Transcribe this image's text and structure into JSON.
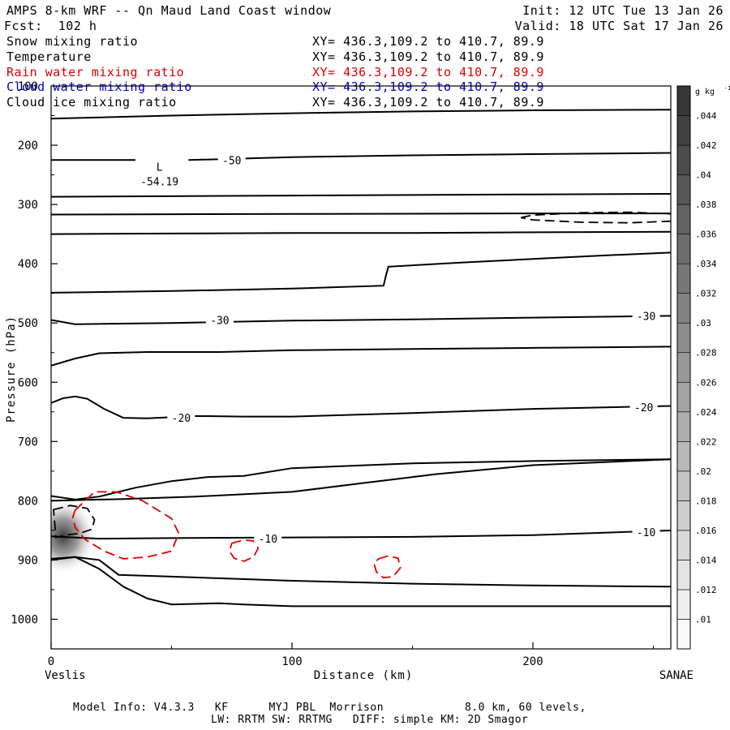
{
  "header": {
    "title": "AMPS 8-km WRF -- Qn Maud Land Coast window",
    "forecast": "Fcst:  102 h",
    "init": "Init: 12 UTC Tue 13 Jan 26",
    "valid": "Valid: 18 UTC Sat 17 Jan 26"
  },
  "fields": [
    {
      "name": "Snow mixing ratio",
      "xy": "XY= 436.3,109.2 to 410.7, 89.9",
      "color": "#000000"
    },
    {
      "name": "Temperature",
      "xy": "XY= 436.3,109.2 to 410.7, 89.9",
      "color": "#000000"
    },
    {
      "name": "Rain water mixing ratio",
      "xy": "XY= 436.3,109.2 to 410.7, 89.9",
      "color": "#dd0000"
    },
    {
      "name": "Cloud water mixing ratio",
      "xy": "XY= 436.3,109.2 to 410.7, 89.9",
      "color": "#0000cc"
    },
    {
      "name": "Cloud ice mixing ratio",
      "xy": "XY= 436.3,109.2 to 410.7, 89.9",
      "color": "#000000"
    }
  ],
  "footer": {
    "line1": "Model Info: V4.3.3   KF      MYJ PBL  Morrison            8.0 km, 60 levels,",
    "line2": "LW: RRTM SW: RRTMG   DIFF: simple KM: 2D Smagor"
  },
  "chart_data": {
    "type": "vertical cross-section (contour)",
    "xlabel": "Distance (km)",
    "ylabel": "Pressure (hPa)",
    "xlim": [
      0,
      258
    ],
    "ylim": [
      100,
      1050
    ],
    "x_ticks": [
      0,
      100,
      200
    ],
    "y_ticks": [
      100,
      200,
      300,
      400,
      500,
      600,
      700,
      800,
      900,
      1000
    ],
    "x_endpoint_labels": {
      "left": "Veslis",
      "right": "SANAE"
    },
    "colorbar": {
      "unit_label": "g kg",
      "unit_exponent": "-1",
      "levels": [
        ".01",
        ".012",
        ".014",
        ".016",
        ".018",
        ".02",
        ".022",
        ".024",
        ".026",
        ".028",
        ".03",
        ".032",
        ".034",
        ".036",
        ".038",
        ".04",
        ".042",
        ".044"
      ]
    },
    "minimum_marker": {
      "label": "L",
      "value": "-54.19",
      "x": 45,
      "p": 225
    },
    "temperature_labels": [
      {
        "text": "-50",
        "x": 75,
        "p": 225
      },
      {
        "text": "-30",
        "x": 70,
        "p": 495
      },
      {
        "text": "-30",
        "x": 247,
        "p": 488
      },
      {
        "text": "-20",
        "x": 54,
        "p": 660
      },
      {
        "text": "-20",
        "x": 246,
        "p": 642
      },
      {
        "text": "-10",
        "x": 90,
        "p": 864
      },
      {
        "text": "-10",
        "x": 247,
        "p": 853
      }
    ],
    "temperature_contours": [
      {
        "x": [
          0,
          50,
          100,
          150,
          200,
          258
        ],
        "p": [
          155,
          150,
          146,
          143,
          141,
          140
        ]
      },
      {
        "x": [
          0,
          35
        ],
        "p": [
          225,
          225
        ],
        "gap_after": true
      },
      {
        "x": [
          57,
          100,
          150,
          200,
          258
        ],
        "p": [
          225,
          220,
          217,
          215,
          213
        ]
      },
      {
        "x": [
          0,
          50,
          100,
          150,
          200,
          258
        ],
        "p": [
          287,
          286,
          285,
          284,
          283,
          282
        ]
      },
      {
        "x": [
          0,
          100,
          200,
          258
        ],
        "p": [
          317,
          316,
          315,
          315
        ]
      },
      {
        "x": [
          0,
          50,
          100,
          150,
          200,
          258
        ],
        "p": [
          350,
          349,
          348,
          348,
          347,
          346
        ]
      },
      {
        "x": [
          0,
          50,
          100,
          138,
          139,
          140,
          170,
          200,
          230,
          258
        ],
        "p": [
          449,
          446,
          442,
          437,
          420,
          405,
          398,
          392,
          386,
          381
        ]
      },
      {
        "x": [
          0,
          10,
          50,
          100,
          150,
          200,
          258
        ],
        "p": [
          495,
          502,
          500,
          496,
          494,
          491,
          488
        ]
      },
      {
        "x": [
          0,
          10,
          20,
          40,
          70,
          100,
          150,
          200,
          258
        ],
        "p": [
          572,
          560,
          551,
          549,
          549,
          546,
          544,
          542,
          540
        ]
      },
      {
        "x": [
          0,
          5,
          10,
          15,
          22,
          30,
          40,
          60,
          80,
          100,
          150,
          200,
          258
        ],
        "p": [
          635,
          627,
          624,
          628,
          645,
          660,
          661,
          657,
          658,
          658,
          652,
          645,
          640
        ]
      },
      {
        "x": [
          0,
          30,
          60,
          100,
          130,
          160,
          200,
          258
        ],
        "p": [
          800,
          797,
          793,
          785,
          770,
          755,
          740,
          730
        ]
      },
      {
        "x": [
          0,
          10,
          20,
          35,
          50,
          65,
          80,
          100,
          150,
          200,
          258
        ],
        "p": [
          792,
          798,
          793,
          778,
          767,
          760,
          758,
          745,
          737,
          733,
          730
        ]
      },
      {
        "x": [
          0,
          20,
          50,
          100,
          150,
          200,
          258
        ],
        "p": [
          860,
          864,
          863,
          862,
          861,
          858,
          850
        ]
      },
      {
        "x": [
          0,
          10,
          20,
          28,
          50,
          100,
          150,
          200,
          258
        ],
        "p": [
          898,
          895,
          900,
          925,
          928,
          935,
          940,
          943,
          945
        ]
      },
      {
        "x": [
          0,
          10,
          20,
          30,
          40,
          50,
          70,
          80,
          100,
          150,
          200,
          258
        ],
        "p": [
          900,
          895,
          915,
          945,
          965,
          975,
          973,
          975,
          978,
          978,
          978,
          978
        ]
      }
    ],
    "snow_dashed_contours": [
      {
        "x": [
          195,
          200,
          220,
          240,
          258,
          258,
          240,
          220,
          200,
          195
        ],
        "p": [
          322,
          318,
          314,
          313,
          316,
          328,
          331,
          330,
          326,
          322
        ]
      },
      {
        "x": [
          1,
          8,
          15,
          18,
          17,
          12,
          6,
          2
        ],
        "p": [
          815,
          808,
          813,
          832,
          848,
          855,
          858,
          862
        ]
      }
    ],
    "rain_dashed_contours": [
      {
        "x": [
          10,
          18,
          27,
          38,
          50,
          53,
          50,
          40,
          30,
          22,
          14,
          10,
          9,
          10
        ],
        "p": [
          816,
          785,
          785,
          800,
          830,
          855,
          885,
          895,
          898,
          885,
          865,
          845,
          828,
          816
        ]
      },
      {
        "x": [
          75,
          80,
          84,
          86,
          84,
          80,
          76,
          74,
          75
        ],
        "p": [
          872,
          866,
          868,
          880,
          895,
          902,
          897,
          885,
          872
        ]
      },
      {
        "x": [
          136,
          140,
          144,
          145,
          142,
          138,
          135,
          134,
          136
        ],
        "p": [
          898,
          893,
          897,
          913,
          928,
          930,
          920,
          905,
          898
        ]
      }
    ],
    "shaded_maximum": {
      "x": 5,
      "p": 860,
      "max_value": ".044"
    }
  }
}
